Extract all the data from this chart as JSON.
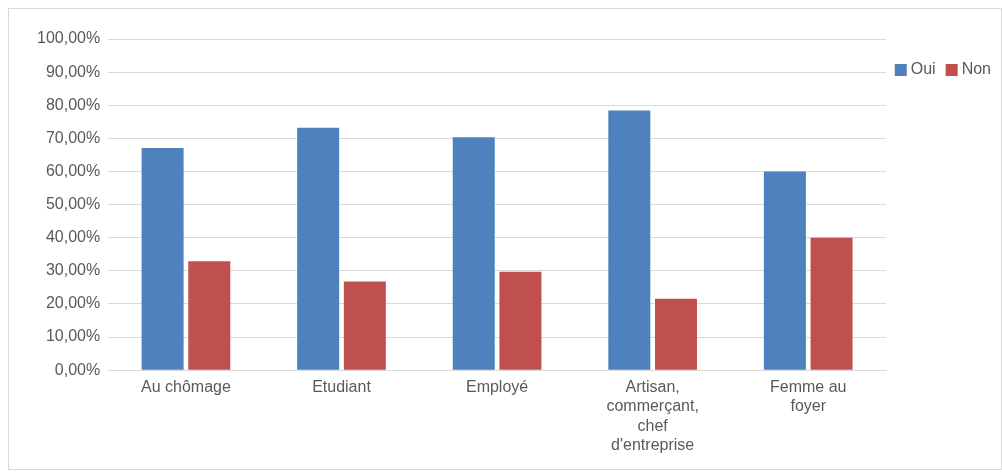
{
  "chart_data": {
    "type": "bar",
    "categories": [
      "Au chômage",
      "Etudiant",
      "Employé",
      "Artisan, commerçant, chef d'entreprise",
      "Femme au foyer"
    ],
    "series": [
      {
        "name": "Oui",
        "color": "#4f81bd",
        "values": [
          67.1,
          73.2,
          70.3,
          78.4,
          60
        ]
      },
      {
        "name": "Non",
        "color": "#c0504d",
        "values": [
          32.9,
          26.8,
          29.7,
          21.6,
          40
        ]
      }
    ],
    "ylim": [
      0,
      100
    ],
    "yticks": [
      {
        "value": 0,
        "label": "0,00%"
      },
      {
        "value": 10,
        "label": "10,00%"
      },
      {
        "value": 20,
        "label": "20,00%"
      },
      {
        "value": 30,
        "label": "30,00%"
      },
      {
        "value": 40,
        "label": "40,00%"
      },
      {
        "value": 50,
        "label": "50,00%"
      },
      {
        "value": 60,
        "label": "60,00%"
      },
      {
        "value": 70,
        "label": "70,00%"
      },
      {
        "value": 80,
        "label": "80,00%"
      },
      {
        "value": 90,
        "label": "90,00%"
      },
      {
        "value": 100,
        "label": "100,00%"
      }
    ],
    "grid": "y",
    "legend": "top right"
  }
}
